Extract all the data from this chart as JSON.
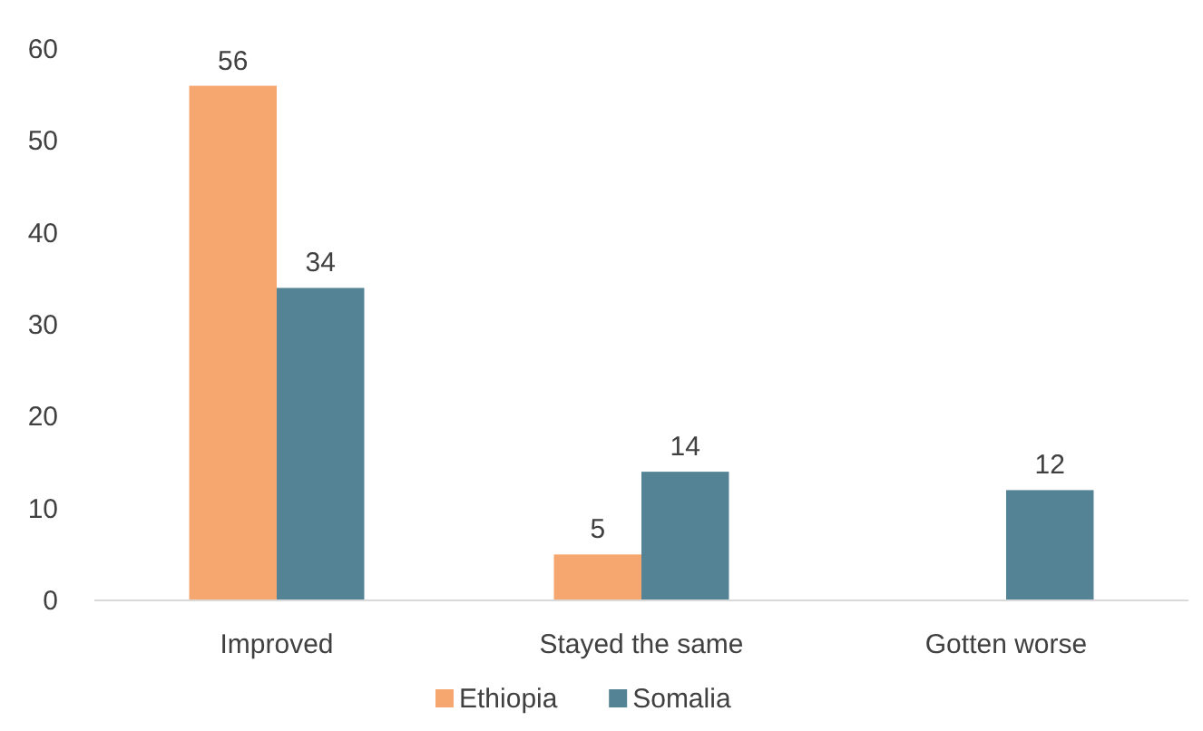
{
  "chart_data": {
    "type": "bar",
    "categories": [
      "Improved",
      "Stayed the same",
      "Gotten worse"
    ],
    "series": [
      {
        "name": "Ethiopia",
        "color": "#f6a76f",
        "values": [
          56,
          5,
          null
        ]
      },
      {
        "name": "Somalia",
        "color": "#548395",
        "values": [
          34,
          14,
          12
        ]
      }
    ],
    "ylim": [
      0,
      60
    ],
    "yticks": [
      0,
      10,
      20,
      30,
      40,
      50,
      60
    ],
    "data_labels": true,
    "legend": "bottom",
    "grid": false
  }
}
